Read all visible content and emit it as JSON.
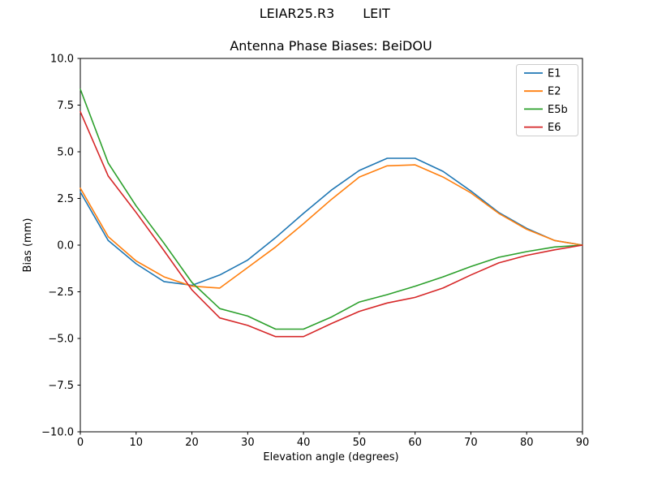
{
  "header": {
    "model": "LEIAR25.R3",
    "station": "LEIT"
  },
  "chart_data": {
    "type": "line",
    "suptitle": "LEIAR25.R3      LEIT",
    "title": "Antenna Phase Biases: BeiDOU",
    "xlabel": "Elevation angle (degrees)",
    "ylabel": "Bias (mm)",
    "xlim": [
      0,
      90
    ],
    "ylim": [
      -10,
      10
    ],
    "xticks": [
      0,
      10,
      20,
      30,
      40,
      50,
      60,
      70,
      80,
      90
    ],
    "yticks": [
      -10.0,
      -7.5,
      -5.0,
      -2.5,
      0.0,
      2.5,
      5.0,
      7.5,
      10.0
    ],
    "grid": false,
    "legend": {
      "position": "upper right"
    },
    "x": [
      0,
      5,
      10,
      15,
      20,
      25,
      30,
      35,
      40,
      45,
      50,
      55,
      60,
      65,
      70,
      75,
      80,
      85,
      90
    ],
    "series": [
      {
        "name": "E1",
        "color": "#1f77b4",
        "values": [
          2.85,
          0.25,
          -1.0,
          -1.95,
          -2.15,
          -1.6,
          -0.8,
          0.4,
          1.7,
          2.95,
          4.0,
          4.65,
          4.65,
          3.95,
          2.9,
          1.75,
          0.9,
          0.25,
          0.0
        ]
      },
      {
        "name": "E2",
        "color": "#ff7f0e",
        "values": [
          3.05,
          0.45,
          -0.85,
          -1.7,
          -2.2,
          -2.3,
          -1.2,
          -0.1,
          1.15,
          2.45,
          3.65,
          4.25,
          4.3,
          3.65,
          2.8,
          1.7,
          0.85,
          0.25,
          0.0
        ]
      },
      {
        "name": "E5b",
        "color": "#2ca02c",
        "values": [
          8.35,
          4.4,
          2.1,
          0.1,
          -2.0,
          -3.4,
          -3.8,
          -4.5,
          -4.5,
          -3.85,
          -3.05,
          -2.65,
          -2.2,
          -1.7,
          -1.15,
          -0.65,
          -0.35,
          -0.1,
          0.0
        ]
      },
      {
        "name": "E6",
        "color": "#d62728",
        "values": [
          7.15,
          3.7,
          1.75,
          -0.3,
          -2.4,
          -3.9,
          -4.3,
          -4.9,
          -4.9,
          -4.2,
          -3.55,
          -3.1,
          -2.8,
          -2.3,
          -1.6,
          -0.95,
          -0.55,
          -0.25,
          0.0
        ]
      }
    ]
  }
}
